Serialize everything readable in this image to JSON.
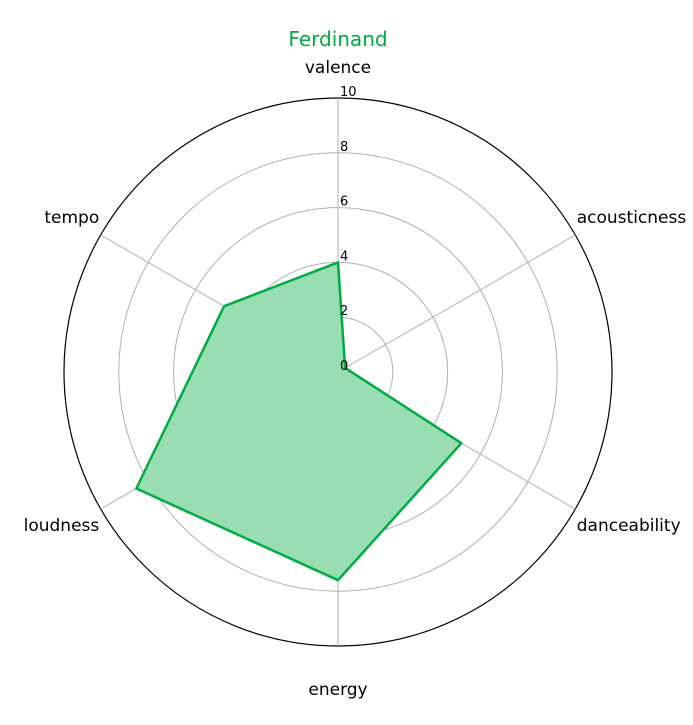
{
  "chart_data": {
    "type": "radar",
    "title": "Ferdinand",
    "categories": [
      "valence",
      "acousticness",
      "danceability",
      "energy",
      "loudness",
      "tempo"
    ],
    "series": [
      {
        "values": [
          4,
          0.3,
          5.2,
          7.6,
          8.5,
          4.8
        ]
      }
    ],
    "rlim": [
      0,
      10
    ],
    "rticks": [
      0,
      2,
      4,
      6,
      8,
      10
    ],
    "grid": true,
    "colors": {
      "title": "#00aa44",
      "line": "#00aa44",
      "fill": "#99ddb3",
      "grid": "#b0b0b0",
      "frame": "#000000"
    }
  }
}
